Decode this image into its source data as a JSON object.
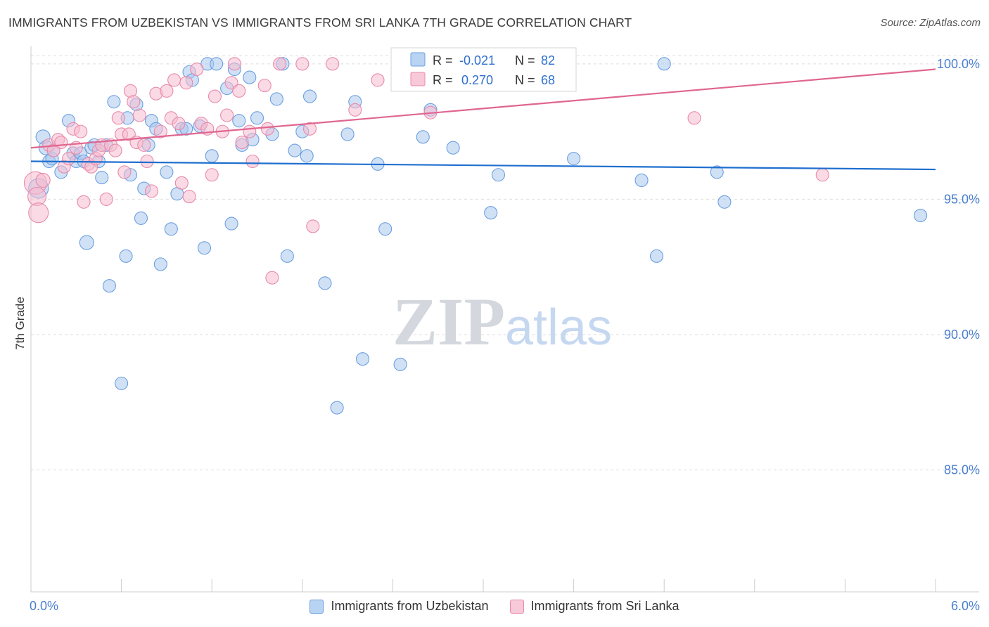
{
  "header": {
    "title": "IMMIGRANTS FROM UZBEKISTAN VS IMMIGRANTS FROM SRI LANKA 7TH GRADE CORRELATION CHART",
    "source": "Source: ZipAtlas.com"
  },
  "watermark": {
    "zip": "ZIP",
    "atlas": "atlas"
  },
  "colors": {
    "blue_fill": "#a9c8ef",
    "blue_stroke": "#6b9fe0",
    "blue_line": "#1f6fcf",
    "pink_fill": "#f6bccf",
    "pink_stroke": "#e88aaa",
    "pink_line": "#e0668f",
    "axis_label": "#4a7fd0",
    "grid": "#dddddd"
  },
  "stats_box": {
    "rows": [
      {
        "r_label": "R =",
        "r_value": "-0.021",
        "n_label": "N =",
        "n_value": "82",
        "series": "blue"
      },
      {
        "r_label": "R =",
        "r_value": "0.270",
        "n_label": "N =",
        "n_value": "68",
        "series": "pink"
      }
    ]
  },
  "legend": {
    "items": [
      {
        "label": "Immigrants from Uzbekistan",
        "series": "blue"
      },
      {
        "label": "Immigrants from Sri Lanka",
        "series": "pink"
      }
    ]
  },
  "chart_data": {
    "type": "scatter",
    "title": "IMMIGRANTS FROM UZBEKISTAN VS IMMIGRANTS FROM SRI LANKA 7TH GRADE CORRELATION CHART",
    "xlabel": "",
    "ylabel": "7th Grade",
    "xlim": [
      0,
      6
    ],
    "ylim": [
      80.5,
      100.8
    ],
    "x_tick_labels": [
      "0.0%",
      "6.0%"
    ],
    "y_ticks": [
      85,
      90,
      95,
      100
    ],
    "y_tick_labels": [
      "85.0%",
      "90.0%",
      "95.0%",
      "100.0%"
    ],
    "grid": true,
    "legend_position": "bottom-center",
    "series": [
      {
        "name": "Immigrants from Uzbekistan",
        "color": "blue",
        "trend": {
          "x": [
            0,
            6
          ],
          "y": [
            96.4,
            96.1
          ]
        },
        "points": [
          [
            0.05,
            95.4,
            14
          ],
          [
            0.08,
            97.3,
            10
          ],
          [
            0.1,
            96.9,
            10
          ],
          [
            0.12,
            96.4,
            9
          ],
          [
            0.14,
            96.5,
            9
          ],
          [
            0.2,
            96.0,
            9
          ],
          [
            0.25,
            97.9,
            9
          ],
          [
            0.28,
            96.7,
            9
          ],
          [
            0.3,
            96.4,
            9
          ],
          [
            0.33,
            96.7,
            9
          ],
          [
            0.35,
            96.4,
            9
          ],
          [
            0.37,
            93.4,
            10
          ],
          [
            0.4,
            96.9,
            9
          ],
          [
            0.45,
            96.4,
            9
          ],
          [
            0.47,
            95.8,
            9
          ],
          [
            0.5,
            97.0,
            9
          ],
          [
            0.52,
            91.8,
            9
          ],
          [
            0.55,
            98.6,
            9
          ],
          [
            0.6,
            88.2,
            9
          ],
          [
            0.63,
            92.9,
            9
          ],
          [
            0.64,
            98.0,
            9
          ],
          [
            0.66,
            95.9,
            9
          ],
          [
            0.7,
            98.5,
            9
          ],
          [
            0.73,
            94.3,
            9
          ],
          [
            0.75,
            95.4,
            9
          ],
          [
            0.78,
            97.0,
            9
          ],
          [
            0.8,
            97.9,
            9
          ],
          [
            0.83,
            97.6,
            9
          ],
          [
            0.86,
            92.6,
            9
          ],
          [
            0.9,
            96.0,
            9
          ],
          [
            0.93,
            93.9,
            9
          ],
          [
            0.97,
            95.2,
            9
          ],
          [
            1.0,
            97.6,
            9
          ],
          [
            1.03,
            97.6,
            9
          ],
          [
            1.05,
            99.7,
            9
          ],
          [
            1.07,
            99.4,
            9
          ],
          [
            1.12,
            97.7,
            9
          ],
          [
            1.15,
            93.2,
            9
          ],
          [
            1.17,
            100.0,
            9
          ],
          [
            1.2,
            96.6,
            9
          ],
          [
            1.23,
            100.0,
            9
          ],
          [
            1.3,
            99.1,
            9
          ],
          [
            1.33,
            94.1,
            9
          ],
          [
            1.35,
            99.8,
            9
          ],
          [
            1.38,
            97.9,
            9
          ],
          [
            1.4,
            97.0,
            9
          ],
          [
            1.45,
            99.5,
            9
          ],
          [
            1.47,
            97.2,
            9
          ],
          [
            1.5,
            98.0,
            9
          ],
          [
            1.6,
            97.4,
            9
          ],
          [
            1.63,
            98.7,
            9
          ],
          [
            1.67,
            100.0,
            9
          ],
          [
            1.7,
            92.9,
            9
          ],
          [
            1.75,
            96.8,
            9
          ],
          [
            1.8,
            97.5,
            9
          ],
          [
            1.83,
            96.6,
            9
          ],
          [
            1.85,
            98.8,
            9
          ],
          [
            1.95,
            91.9,
            9
          ],
          [
            2.03,
            87.3,
            9
          ],
          [
            2.1,
            97.4,
            9
          ],
          [
            2.15,
            98.6,
            9
          ],
          [
            2.2,
            89.1,
            9
          ],
          [
            2.3,
            96.3,
            9
          ],
          [
            2.35,
            93.9,
            9
          ],
          [
            2.45,
            88.9,
            9
          ],
          [
            2.48,
            99.5,
            9
          ],
          [
            2.6,
            97.3,
            9
          ],
          [
            2.65,
            98.3,
            9
          ],
          [
            2.8,
            96.9,
            9
          ],
          [
            2.9,
            99.6,
            9
          ],
          [
            3.05,
            94.5,
            9
          ],
          [
            3.1,
            95.9,
            9
          ],
          [
            3.25,
            100.0,
            9
          ],
          [
            3.6,
            96.5,
            9
          ],
          [
            4.05,
            95.7,
            9
          ],
          [
            4.15,
            92.9,
            9
          ],
          [
            4.2,
            100.0,
            9
          ],
          [
            4.55,
            96.0,
            9
          ],
          [
            4.6,
            94.9,
            9
          ],
          [
            5.9,
            94.4,
            9
          ],
          [
            0.15,
            96.8,
            9
          ],
          [
            0.42,
            97.0,
            9
          ]
        ]
      },
      {
        "name": "Immigrants from Sri Lanka",
        "color": "pink",
        "trend": {
          "x": [
            0,
            6
          ],
          "y": [
            96.9,
            99.8
          ]
        },
        "points": [
          [
            0.03,
            95.6,
            16
          ],
          [
            0.04,
            95.1,
            13
          ],
          [
            0.05,
            94.5,
            14
          ],
          [
            0.08,
            95.7,
            10
          ],
          [
            0.12,
            97.0,
            9
          ],
          [
            0.15,
            96.8,
            9
          ],
          [
            0.18,
            97.2,
            9
          ],
          [
            0.2,
            97.1,
            9
          ],
          [
            0.22,
            96.2,
            9
          ],
          [
            0.25,
            96.5,
            9
          ],
          [
            0.28,
            97.6,
            9
          ],
          [
            0.3,
            96.9,
            9
          ],
          [
            0.33,
            97.5,
            9
          ],
          [
            0.35,
            94.9,
            9
          ],
          [
            0.38,
            96.3,
            9
          ],
          [
            0.4,
            96.2,
            9
          ],
          [
            0.43,
            96.5,
            9
          ],
          [
            0.45,
            96.8,
            9
          ],
          [
            0.47,
            97.0,
            9
          ],
          [
            0.5,
            95.0,
            9
          ],
          [
            0.53,
            97.0,
            9
          ],
          [
            0.56,
            96.8,
            9
          ],
          [
            0.58,
            98.0,
            9
          ],
          [
            0.6,
            97.4,
            9
          ],
          [
            0.62,
            96.0,
            9
          ],
          [
            0.65,
            97.4,
            9
          ],
          [
            0.66,
            99.0,
            9
          ],
          [
            0.68,
            98.6,
            9
          ],
          [
            0.7,
            97.1,
            9
          ],
          [
            0.72,
            98.1,
            9
          ],
          [
            0.75,
            97.0,
            9
          ],
          [
            0.77,
            96.4,
            9
          ],
          [
            0.8,
            95.3,
            9
          ],
          [
            0.83,
            98.9,
            9
          ],
          [
            0.86,
            97.5,
            9
          ],
          [
            0.9,
            99.0,
            9
          ],
          [
            0.93,
            98.0,
            9
          ],
          [
            0.95,
            99.4,
            9
          ],
          [
            0.98,
            97.8,
            9
          ],
          [
            1.0,
            95.6,
            9
          ],
          [
            1.03,
            99.3,
            9
          ],
          [
            1.05,
            95.1,
            9
          ],
          [
            1.1,
            99.8,
            9
          ],
          [
            1.13,
            97.8,
            9
          ],
          [
            1.17,
            97.6,
            9
          ],
          [
            1.2,
            95.9,
            9
          ],
          [
            1.22,
            98.8,
            9
          ],
          [
            1.27,
            97.5,
            9
          ],
          [
            1.3,
            98.1,
            9
          ],
          [
            1.33,
            99.3,
            9
          ],
          [
            1.35,
            100.0,
            9
          ],
          [
            1.38,
            99.0,
            9
          ],
          [
            1.4,
            97.1,
            9
          ],
          [
            1.45,
            97.5,
            9
          ],
          [
            1.47,
            96.4,
            9
          ],
          [
            1.55,
            99.2,
            9
          ],
          [
            1.57,
            97.6,
            9
          ],
          [
            1.6,
            92.1,
            9
          ],
          [
            1.65,
            100.0,
            9
          ],
          [
            1.8,
            100.0,
            9
          ],
          [
            1.85,
            97.6,
            9
          ],
          [
            1.87,
            94.0,
            9
          ],
          [
            2.0,
            100.0,
            9
          ],
          [
            2.15,
            98.3,
            9
          ],
          [
            2.3,
            99.4,
            9
          ],
          [
            2.65,
            98.2,
            9
          ],
          [
            4.4,
            98.0,
            9
          ],
          [
            5.25,
            95.9,
            9
          ]
        ]
      }
    ]
  }
}
